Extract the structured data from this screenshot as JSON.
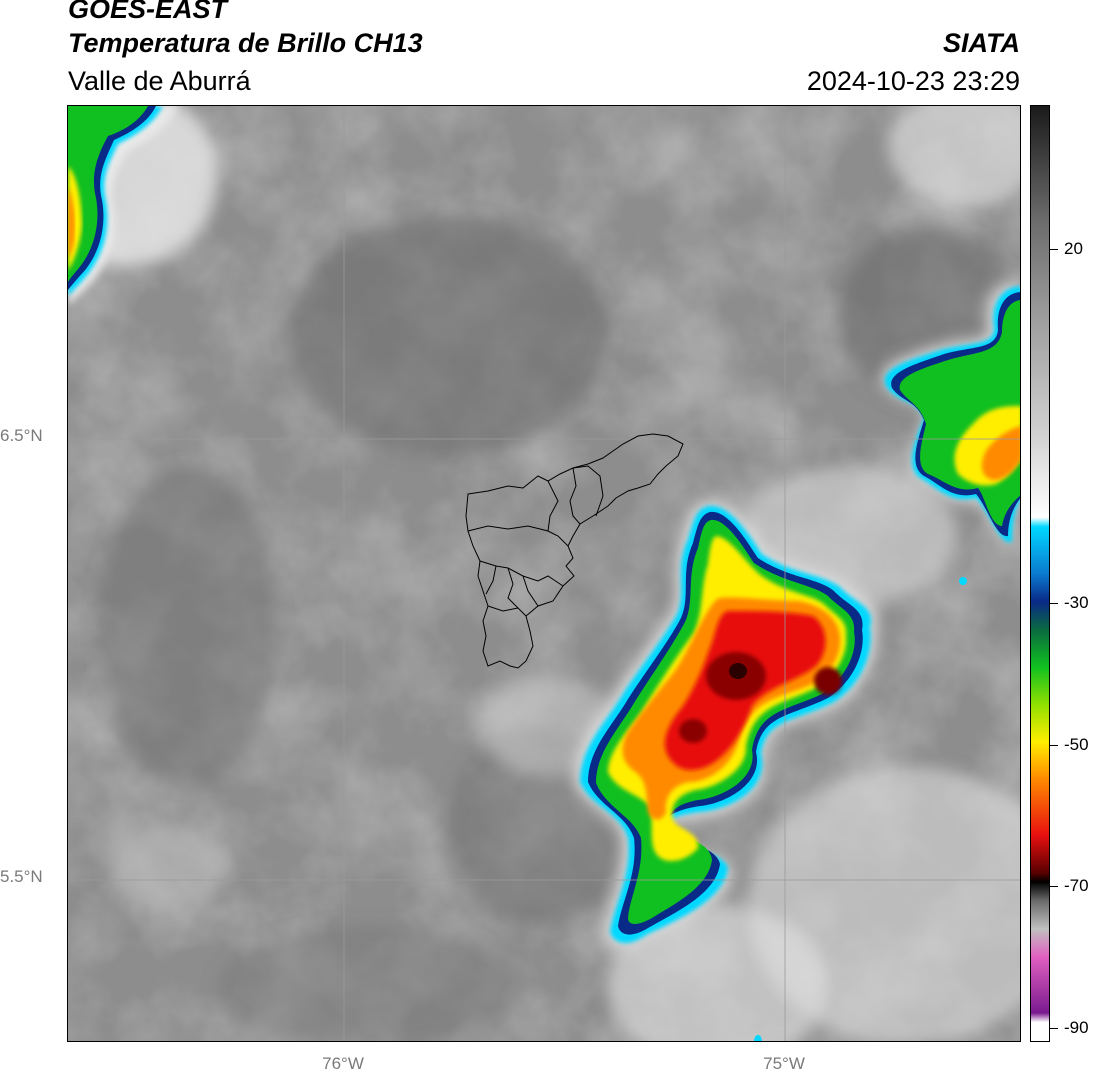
{
  "header": {
    "title_line1": "GOES-EAST",
    "title_line2": "Temperatura de Brillo CH13",
    "subtitle": "Valle de Aburrá",
    "organization": "SIATA",
    "timestamp": "2024-10-23 23:29"
  },
  "axes": {
    "lat_labels": [
      "6.5°N",
      "5.5°N"
    ],
    "lon_labels": [
      "76°W",
      "75°W"
    ]
  },
  "colorbar": {
    "tick_labels": [
      "20",
      "-30",
      "-50",
      "-70",
      "-90"
    ],
    "colors": {
      "dark_gray": "#1a1a1a",
      "light_gray": "#ffffff",
      "cyan": "#00d8ff",
      "navy": "#0a2a88",
      "green": "#10c020",
      "yellow": "#ffee00",
      "orange": "#ff8a00",
      "red": "#e81010",
      "dark_red": "#5a0000",
      "pink": "#e060c0",
      "purple": "#7a1a90"
    }
  },
  "map": {
    "gridline_color": "#9a9a9a",
    "boundary_color": "#000000"
  }
}
